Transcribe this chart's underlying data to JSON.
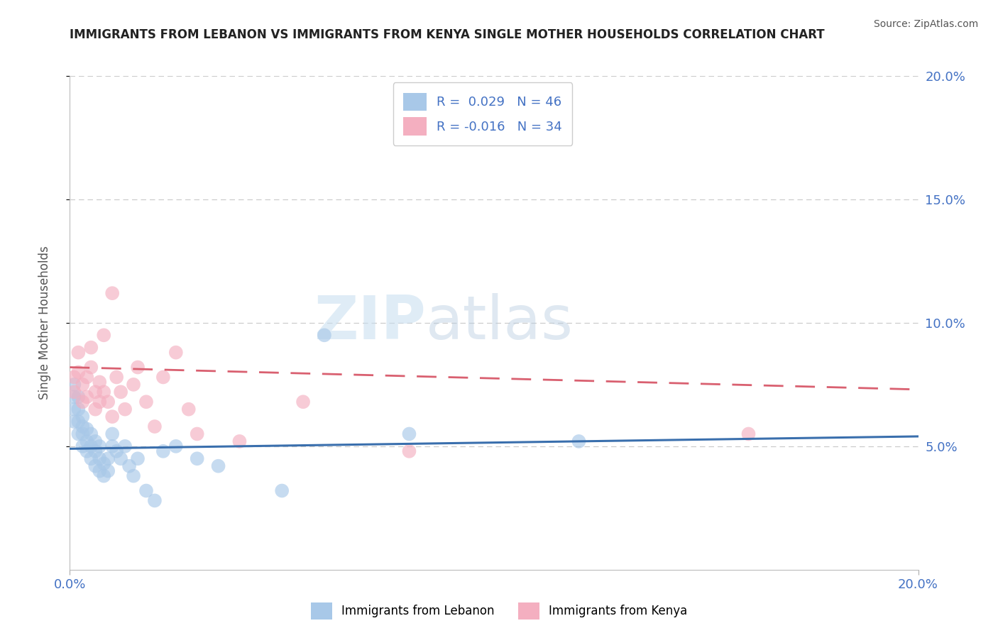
{
  "title": "IMMIGRANTS FROM LEBANON VS IMMIGRANTS FROM KENYA SINGLE MOTHER HOUSEHOLDS CORRELATION CHART",
  "source": "Source: ZipAtlas.com",
  "ylabel": "Single Mother Households",
  "xlim": [
    0.0,
    0.2
  ],
  "ylim": [
    0.0,
    0.2
  ],
  "legend_labels": [
    "Immigrants from Lebanon",
    "Immigrants from Kenya"
  ],
  "r_lebanon": 0.029,
  "n_lebanon": 46,
  "r_kenya": -0.016,
  "n_kenya": 34,
  "color_lebanon": "#a8c8e8",
  "color_kenya": "#f4afc0",
  "color_lebanon_line": "#3a6fad",
  "color_kenya_line": "#d96070",
  "watermark_zip": "ZIP",
  "watermark_atlas": "atlas",
  "lebanon_x": [
    0.001,
    0.001,
    0.001,
    0.001,
    0.002,
    0.002,
    0.002,
    0.002,
    0.003,
    0.003,
    0.003,
    0.003,
    0.004,
    0.004,
    0.004,
    0.005,
    0.005,
    0.005,
    0.006,
    0.006,
    0.006,
    0.007,
    0.007,
    0.007,
    0.008,
    0.008,
    0.009,
    0.009,
    0.01,
    0.01,
    0.011,
    0.012,
    0.013,
    0.014,
    0.015,
    0.016,
    0.018,
    0.02,
    0.022,
    0.025,
    0.03,
    0.035,
    0.05,
    0.06,
    0.08,
    0.12
  ],
  "lebanon_y": [
    0.06,
    0.065,
    0.07,
    0.075,
    0.055,
    0.06,
    0.065,
    0.07,
    0.05,
    0.055,
    0.058,
    0.062,
    0.048,
    0.052,
    0.057,
    0.045,
    0.05,
    0.055,
    0.042,
    0.048,
    0.052,
    0.04,
    0.045,
    0.05,
    0.038,
    0.043,
    0.04,
    0.045,
    0.05,
    0.055,
    0.048,
    0.045,
    0.05,
    0.042,
    0.038,
    0.045,
    0.032,
    0.028,
    0.048,
    0.05,
    0.045,
    0.042,
    0.032,
    0.095,
    0.055,
    0.052
  ],
  "kenya_x": [
    0.001,
    0.001,
    0.002,
    0.002,
    0.003,
    0.003,
    0.004,
    0.004,
    0.005,
    0.005,
    0.006,
    0.006,
    0.007,
    0.007,
    0.008,
    0.008,
    0.009,
    0.01,
    0.01,
    0.011,
    0.012,
    0.013,
    0.015,
    0.016,
    0.018,
    0.02,
    0.022,
    0.025,
    0.028,
    0.03,
    0.04,
    0.055,
    0.08,
    0.16
  ],
  "kenya_y": [
    0.072,
    0.078,
    0.08,
    0.088,
    0.068,
    0.075,
    0.07,
    0.078,
    0.082,
    0.09,
    0.065,
    0.072,
    0.068,
    0.076,
    0.095,
    0.072,
    0.068,
    0.062,
    0.112,
    0.078,
    0.072,
    0.065,
    0.075,
    0.082,
    0.068,
    0.058,
    0.078,
    0.088,
    0.065,
    0.055,
    0.052,
    0.068,
    0.048,
    0.055
  ],
  "grid_color": "#cccccc",
  "grid_yticks": [
    0.05,
    0.1,
    0.15,
    0.2
  ],
  "title_color": "#222222",
  "source_color": "#555555",
  "tick_color": "#4472c4",
  "ylabel_color": "#555555"
}
